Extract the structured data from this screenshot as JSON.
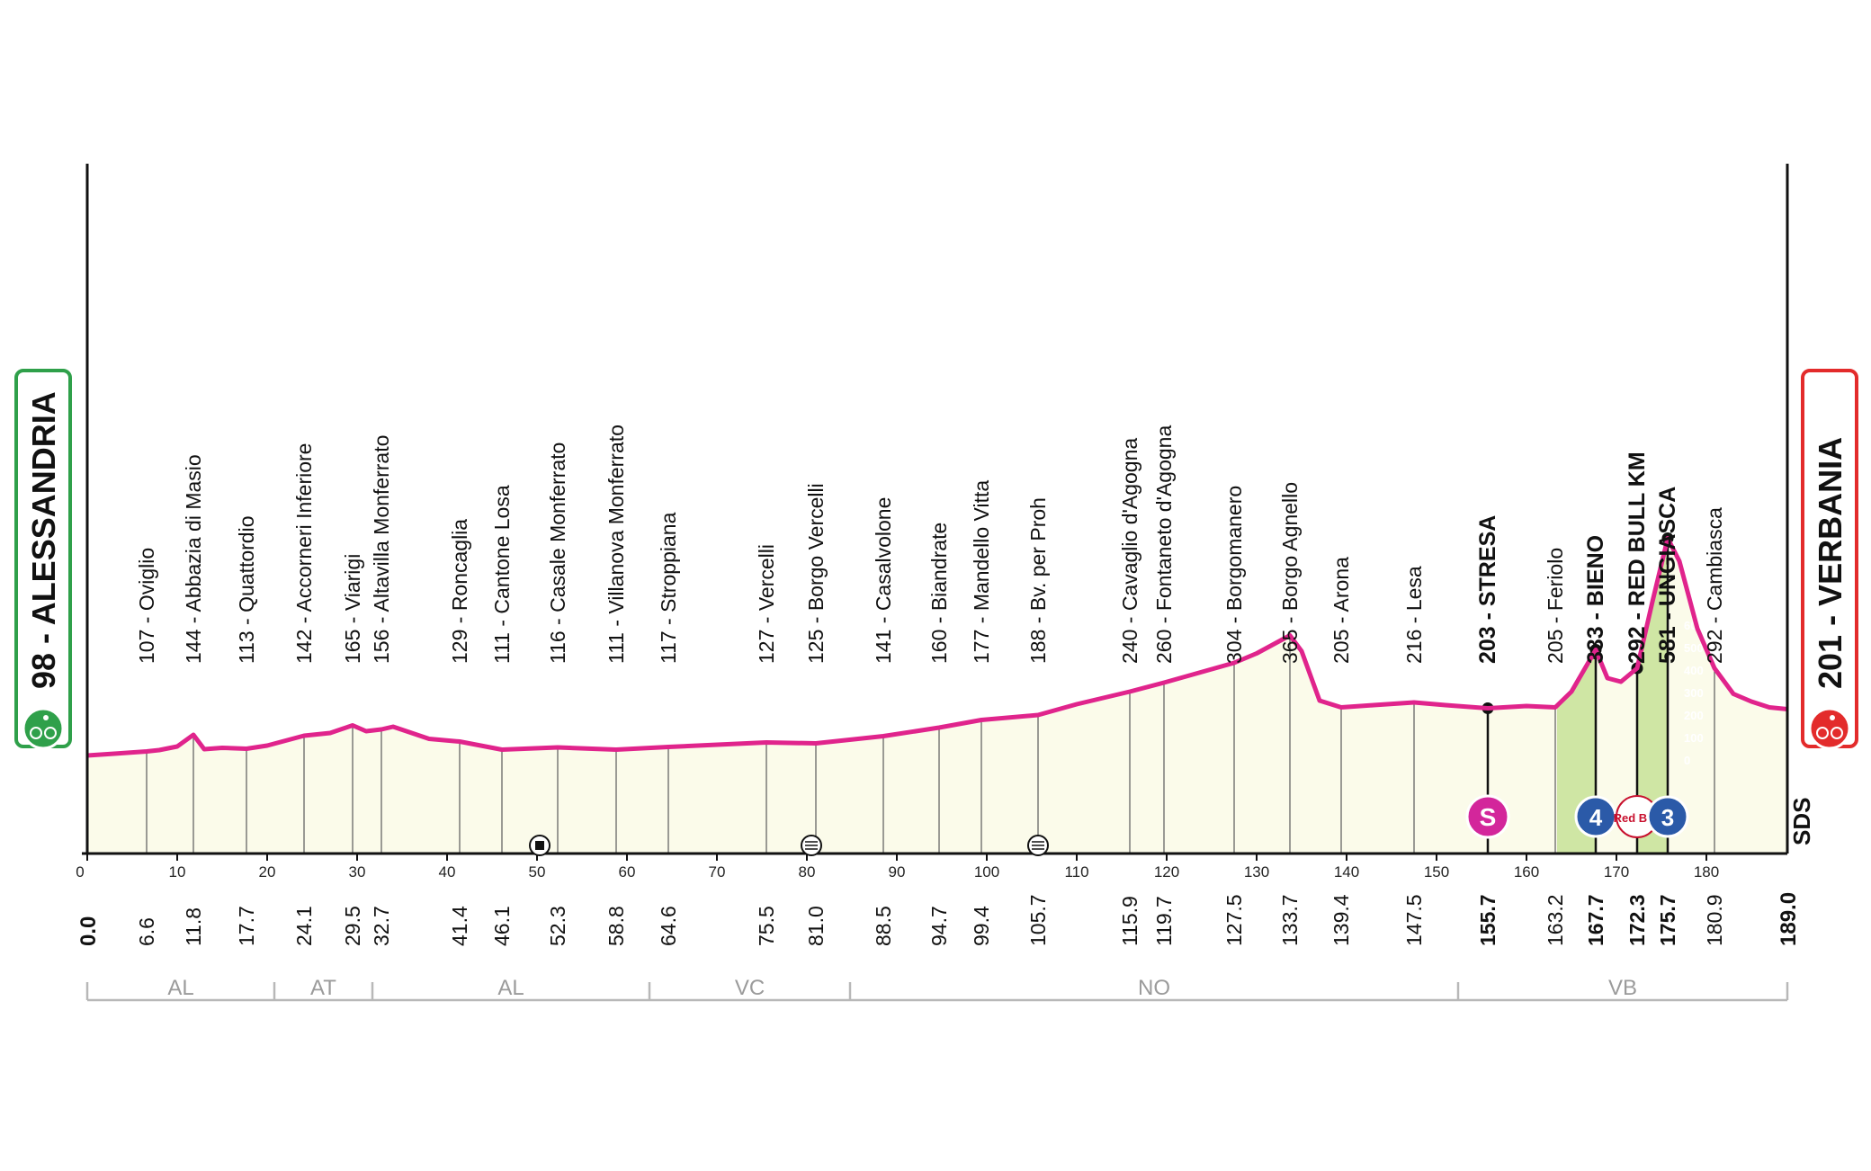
{
  "chart_data": {
    "type": "area",
    "title": "",
    "xlabel": "",
    "ylabel": "",
    "xlim": [
      0,
      189
    ],
    "ylim": [
      0,
      700
    ],
    "grid": true,
    "colors": {
      "profile_line": "#e0248c",
      "profile_fill": "#fbfbea",
      "climb_fill": "#cfe6a4",
      "start_badge": "#2fa04a",
      "finish_badge": "#e32b2b",
      "sprint_badge": "#d3269b",
      "kom_badge": "#2b5aa8"
    },
    "axis_ticks": [
      0,
      10,
      20,
      30,
      40,
      50,
      60,
      70,
      80,
      90,
      100,
      110,
      120,
      130,
      140,
      150,
      160,
      170,
      180
    ],
    "profile": {
      "km": [
        0,
        3,
        6.6,
        8,
        10,
        11.8,
        13,
        15,
        17.7,
        20,
        24.1,
        27,
        29.5,
        31,
        32.7,
        34,
        38,
        41.4,
        46.1,
        52.3,
        58.8,
        64.6,
        75.5,
        81,
        88.5,
        94.7,
        99.4,
        105.7,
        110,
        115.9,
        119.7,
        127.5,
        130,
        133.7,
        135,
        137,
        139.4,
        143,
        147.5,
        151,
        155.7,
        160,
        163.2,
        165,
        167.7,
        169,
        170.5,
        172.3,
        174,
        175.7,
        177,
        179,
        180.9,
        183,
        185,
        187,
        189
      ],
      "alt": [
        98,
        102,
        107,
        110,
        118,
        144,
        112,
        115,
        113,
        120,
        142,
        148,
        165,
        152,
        156,
        162,
        135,
        129,
        111,
        116,
        111,
        117,
        127,
        125,
        141,
        160,
        177,
        188,
        212,
        240,
        260,
        304,
        325,
        365,
        330,
        220,
        205,
        210,
        216,
        210,
        203,
        208,
        205,
        240,
        333,
        270,
        262,
        292,
        440,
        581,
        530,
        380,
        292,
        235,
        218,
        205,
        201
      ]
    },
    "start": {
      "km": "0.0",
      "alt": "98",
      "name": "ALESSANDRIA"
    },
    "finish": {
      "km": "189.0",
      "alt": "201",
      "name": "VERBANIA"
    },
    "waypoints": [
      {
        "km": "6.6",
        "label": "107 - Oviglio"
      },
      {
        "km": "11.8",
        "label": "144 - Abbazia di Masio"
      },
      {
        "km": "17.7",
        "label": "113 - Quattordio"
      },
      {
        "km": "24.1",
        "label": "142 - Accorneri Inferiore"
      },
      {
        "km": "29.5",
        "label": "165 - Viarigi"
      },
      {
        "km": "32.7",
        "label": "156 - Altavilla Monferrato"
      },
      {
        "km": "41.4",
        "label": "129 - Roncaglia"
      },
      {
        "km": "46.1",
        "label": "111 - Cantone Losa"
      },
      {
        "km": "52.3",
        "label": "116 - Casale Monferrato"
      },
      {
        "km": "58.8",
        "label": "111 - Villanova Monferrato"
      },
      {
        "km": "64.6",
        "label": "117 - Stroppiana"
      },
      {
        "km": "75.5",
        "label": "127 - Vercelli"
      },
      {
        "km": "81.0",
        "label": "125 - Borgo Vercelli"
      },
      {
        "km": "88.5",
        "label": "141 - Casalvolone"
      },
      {
        "km": "94.7",
        "label": "160 - Biandrate"
      },
      {
        "km": "99.4",
        "label": "177 - Mandello Vitta"
      },
      {
        "km": "105.7",
        "label": "188 - Bv. per Proh"
      },
      {
        "km": "115.9",
        "label": "240 - Cavaglio d'Agogna"
      },
      {
        "km": "119.7",
        "label": "260 - Fontaneto d'Agogna"
      },
      {
        "km": "127.5",
        "label": "304 - Borgomanero"
      },
      {
        "km": "133.7",
        "label": "365 - Borgo Agnello"
      },
      {
        "km": "139.4",
        "label": "205 - Arona"
      },
      {
        "km": "147.5",
        "label": "216 - Lesa"
      },
      {
        "km": "155.7",
        "label": "203 - STRESA",
        "bold": true
      },
      {
        "km": "163.2",
        "label": "205 - Feriolo"
      },
      {
        "km": "167.7",
        "label": "333 - BIENO",
        "bold": true
      },
      {
        "km": "172.3",
        "label": "292 - RED BULL KM",
        "bold": true
      },
      {
        "km": "175.7",
        "label": "581 - UNGIASCA",
        "bold": true
      },
      {
        "km": "180.9",
        "label": "292 - Cambiasca"
      }
    ],
    "regions": [
      {
        "label": "AL",
        "from": 0,
        "to": 20.8
      },
      {
        "label": "AT",
        "from": 20.8,
        "to": 31.7
      },
      {
        "label": "AL",
        "from": 31.7,
        "to": 62.5
      },
      {
        "label": "VC",
        "from": 62.5,
        "to": 84.8
      },
      {
        "label": "NO",
        "from": 84.8,
        "to": 152.4
      },
      {
        "label": "VB",
        "from": 152.4,
        "to": 189
      }
    ],
    "climb_scale": [
      "600",
      "500",
      "400",
      "300",
      "200",
      "100",
      "0"
    ],
    "markers": [
      {
        "type": "sprint",
        "km": 155.7,
        "label": "S"
      },
      {
        "type": "kom",
        "km": 167.7,
        "label": "4"
      },
      {
        "type": "bonus",
        "km": 172.3,
        "label": "Red Bull"
      },
      {
        "type": "kom",
        "km": 175.7,
        "label": "3"
      },
      {
        "type": "crossing",
        "km": 50.3
      },
      {
        "type": "rail",
        "km": 80.5
      },
      {
        "type": "rail",
        "km": 105.7
      }
    ],
    "sds_label": "SDS"
  }
}
